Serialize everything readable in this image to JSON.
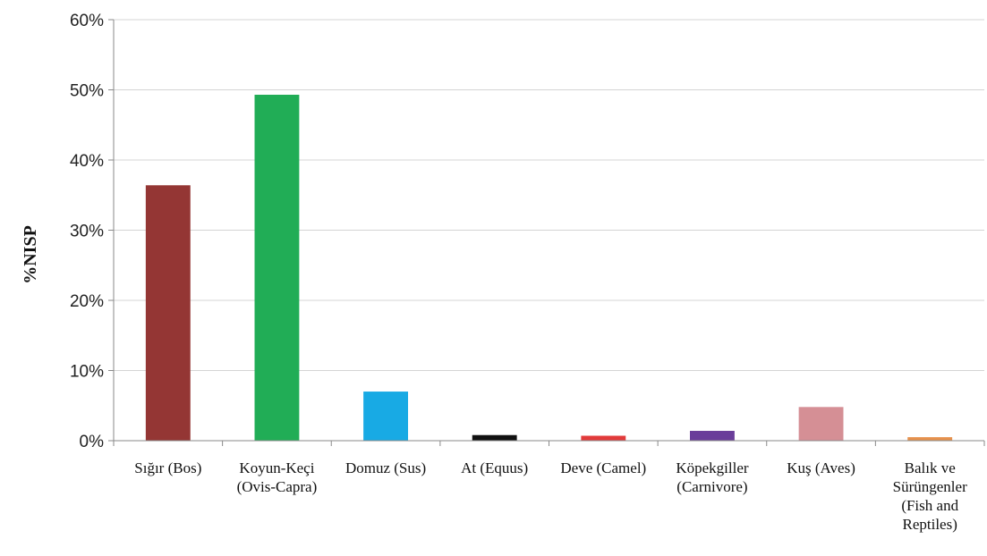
{
  "chart_data": {
    "type": "bar",
    "ylabel": "%NISP",
    "xlabel": "",
    "ylim": [
      0,
      60
    ],
    "yticks": [
      "0%",
      "10%",
      "20%",
      "30%",
      "40%",
      "50%",
      "60%"
    ],
    "grid": true,
    "categories": [
      [
        "Sığır (Bos)"
      ],
      [
        "Koyun-Keçi",
        "(Ovis-Capra)"
      ],
      [
        "Domuz (Sus)"
      ],
      [
        "At (Equus)"
      ],
      [
        "Deve (Camel)"
      ],
      [
        "Köpekgiller",
        "(Carnivore)"
      ],
      [
        "Kuş (Aves)"
      ],
      [
        "Balık ve",
        "Sürüngenler",
        "(Fish and",
        "Reptiles)"
      ]
    ],
    "values": [
      36.4,
      49.3,
      7.0,
      0.8,
      0.7,
      1.4,
      4.8,
      0.5
    ],
    "colors": [
      "#943634",
      "#21ad56",
      "#18aae4",
      "#111111",
      "#e23a3a",
      "#6a3d9a",
      "#d58f95",
      "#e6914c"
    ]
  }
}
